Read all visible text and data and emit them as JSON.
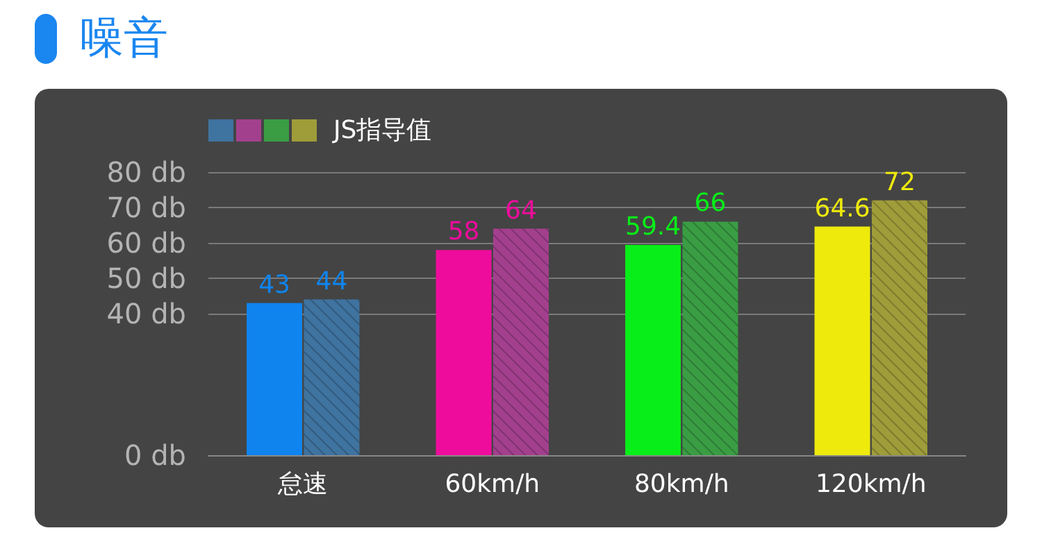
{
  "chart_data": {
    "type": "bar",
    "title": "噪音",
    "categories": [
      "怠速",
      "60km/h",
      "80km/h",
      "120km/h"
    ],
    "series": [
      {
        "colors": [
          "#0f84ee",
          "#ee0c9c",
          "#08ee18",
          "#eeea0c"
        ],
        "values": [
          43,
          58,
          59.4,
          64.6
        ]
      },
      {
        "name": "JS指导值",
        "colors": [
          "#3f73a0",
          "#a3408e",
          "#3a9d44",
          "#9f9c3a"
        ],
        "values": [
          44,
          64,
          66,
          72
        ]
      }
    ],
    "ylim": [
      0,
      80
    ],
    "yticks": [
      {
        "value": 0,
        "label": "0 db"
      },
      {
        "value": 40,
        "label": "40 db"
      },
      {
        "value": 50,
        "label": "50 db"
      },
      {
        "value": 60,
        "label": "60 db"
      },
      {
        "value": 70,
        "label": "70 db"
      },
      {
        "value": 80,
        "label": "80 db"
      }
    ],
    "grid": "y",
    "legend": "top left",
    "data_labels": true
  }
}
